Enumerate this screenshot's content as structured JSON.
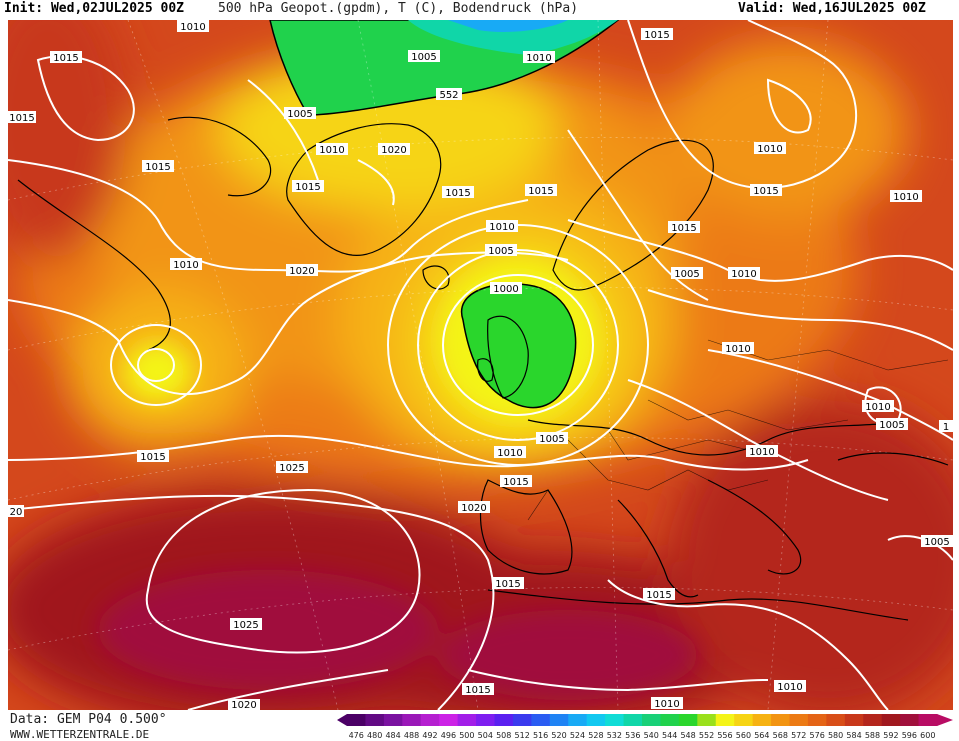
{
  "header": {
    "init": "Init: Wed,02JUL2025 00Z",
    "title": "500 hPa Geopot.(gpdm), T (C), Bodendruck (hPa)",
    "valid": "Valid: Wed,16JUL2025 00Z"
  },
  "footer": {
    "source": "Data: GEM P04 0.500°",
    "site": "WWW.WETTERZENTRALE.DE"
  },
  "legend": {
    "levels": [
      "476",
      "480",
      "484",
      "488",
      "492",
      "496",
      "500",
      "504",
      "508",
      "512",
      "516",
      "520",
      "524",
      "528",
      "532",
      "536",
      "540",
      "544",
      "548",
      "552",
      "556",
      "560",
      "564",
      "568",
      "572",
      "576",
      "580",
      "584",
      "588",
      "592",
      "596",
      "600"
    ],
    "colors": [
      "#4b0066",
      "#620a84",
      "#7a12a0",
      "#9a18b8",
      "#b51fd0",
      "#cc22e6",
      "#a21ee8",
      "#7e1ef0",
      "#5a20f0",
      "#3a3aee",
      "#2a5cf2",
      "#1f83f4",
      "#18aaf5",
      "#12c8f0",
      "#10dcd6",
      "#10d6a8",
      "#18d078",
      "#20d24c",
      "#2ad62c",
      "#9ae01c",
      "#f4f418",
      "#f6d414",
      "#f6b212",
      "#f29412",
      "#ec7a14",
      "#e46416",
      "#d84e18",
      "#c8381a",
      "#b4261c",
      "#a0181e",
      "#a0103c",
      "#b80c64"
    ]
  },
  "map_labels": [
    {
      "text": "1010",
      "fmt": "isobar"
    },
    {
      "text": "1005",
      "fmt": "isobar"
    },
    {
      "text": "1010",
      "fmt": "isobar"
    },
    {
      "text": "1015",
      "fmt": "isobar"
    },
    {
      "text": "1015",
      "fmt": "isobar"
    },
    {
      "text": "1015",
      "fmt": "isobar"
    },
    {
      "text": "1005",
      "fmt": "isobar"
    },
    {
      "text": "552",
      "fmt": "geopot"
    },
    {
      "text": "1010",
      "fmt": "isobar"
    },
    {
      "text": "1020",
      "fmt": "isobar"
    },
    {
      "text": "1015",
      "fmt": "isobar"
    },
    {
      "text": "1015",
      "fmt": "isobar"
    },
    {
      "text": "1015",
      "fmt": "isobar"
    },
    {
      "text": "1015",
      "fmt": "isobar"
    },
    {
      "text": "1010",
      "fmt": "isobar"
    },
    {
      "text": "1015",
      "fmt": "isobar"
    },
    {
      "text": "1010",
      "fmt": "isobar"
    },
    {
      "text": "1010",
      "fmt": "isobar"
    },
    {
      "text": "1020",
      "fmt": "isobar"
    },
    {
      "text": "1010",
      "fmt": "isobar"
    },
    {
      "text": "1005",
      "fmt": "isobar"
    },
    {
      "text": "1015",
      "fmt": "isobar"
    },
    {
      "text": "1005",
      "fmt": "isobar"
    },
    {
      "text": "1010",
      "fmt": "isobar"
    },
    {
      "text": "1000",
      "fmt": "isobar"
    },
    {
      "text": "1010",
      "fmt": "isobar"
    },
    {
      "text": "1010",
      "fmt": "isobar"
    },
    {
      "text": "1005",
      "fmt": "isobar"
    },
    {
      "text": "1",
      "fmt": "isobar"
    },
    {
      "text": "1015",
      "fmt": "isobar"
    },
    {
      "text": "1005",
      "fmt": "isobar"
    },
    {
      "text": "1010",
      "fmt": "isobar"
    },
    {
      "text": "1025",
      "fmt": "isobar"
    },
    {
      "text": "1015",
      "fmt": "isobar"
    },
    {
      "text": "1010",
      "fmt": "isobar"
    },
    {
      "text": "20",
      "fmt": "isobar"
    },
    {
      "text": "1020",
      "fmt": "isobar"
    },
    {
      "text": "1005",
      "fmt": "isobar"
    },
    {
      "text": "1015",
      "fmt": "isobar"
    },
    {
      "text": "1015",
      "fmt": "isobar"
    },
    {
      "text": "1025",
      "fmt": "isobar"
    },
    {
      "text": "1015",
      "fmt": "isobar"
    },
    {
      "text": "1010",
      "fmt": "isobar"
    },
    {
      "text": "1010",
      "fmt": "isobar"
    },
    {
      "text": "1020",
      "fmt": "isobar"
    }
  ]
}
